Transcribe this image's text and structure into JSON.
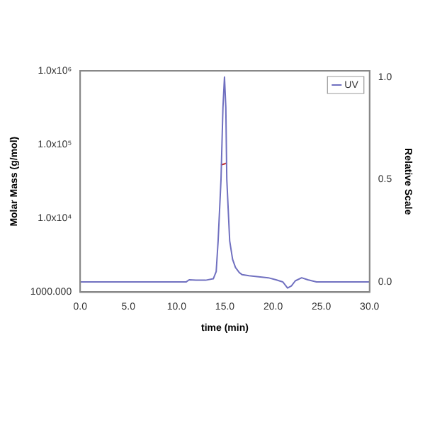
{
  "chart_data": {
    "type": "line",
    "xlabel": "time (min)",
    "ylabel": "Molar Mass (g/mol)",
    "y2label": "Relative Scale",
    "xlim": [
      0,
      30
    ],
    "xticks": [
      {
        "value": 0,
        "label": "0.0"
      },
      {
        "value": 5,
        "label": "5.0"
      },
      {
        "value": 10,
        "label": "10.0"
      },
      {
        "value": 15,
        "label": "15.0"
      },
      {
        "value": 20,
        "label": "20.0"
      },
      {
        "value": 25,
        "label": "25.0"
      },
      {
        "value": 30,
        "label": "30.0"
      }
    ],
    "ylim": [
      1000,
      1000000
    ],
    "yticks": [
      {
        "value": 1000,
        "label": "1000.000"
      },
      {
        "value": 10000,
        "label": "1.0x10⁴"
      },
      {
        "value": 100000,
        "label": "1.0x10⁵"
      },
      {
        "value": 1000000,
        "label": "1.0x10⁶"
      }
    ],
    "y2lim": [
      -0.05,
      1.03
    ],
    "y2ticks": [
      {
        "value": 0,
        "label": "0.0"
      },
      {
        "value": 0.5,
        "label": "0.5"
      },
      {
        "value": 1,
        "label": "1.0"
      }
    ],
    "log": "y",
    "grid": false,
    "legend": "top right",
    "marker": "none",
    "line_style": "solid",
    "series": [
      {
        "name": "UV",
        "color": "#7070c0",
        "axis": "y2",
        "x": [
          0,
          5,
          10,
          11,
          11.3,
          12,
          13,
          13.8,
          14.1,
          14.3,
          14.6,
          14.8,
          14.96,
          15.1,
          15.2,
          15.5,
          15.8,
          16.1,
          16.5,
          16.8,
          17.5,
          18.5,
          19.5,
          20.3,
          21,
          21.5,
          21.9,
          22.3,
          22.96,
          23.6,
          24.5,
          27,
          30
        ],
        "values": [
          0,
          0,
          0,
          0,
          0.01,
          0.008,
          0.008,
          0.015,
          0.05,
          0.2,
          0.5,
          0.85,
          1.0,
          0.85,
          0.5,
          0.2,
          0.11,
          0.07,
          0.045,
          0.035,
          0.03,
          0.025,
          0.02,
          0.01,
          0.0,
          -0.03,
          -0.02,
          0.005,
          0.02,
          0.01,
          0.0,
          0.0,
          0.0
        ]
      },
      {
        "color": "#c0282d",
        "axis": "y",
        "x": [
          14.6,
          14.8,
          15.0,
          15.1
        ],
        "values": [
          53000,
          54000,
          55000,
          56000
        ]
      }
    ]
  }
}
